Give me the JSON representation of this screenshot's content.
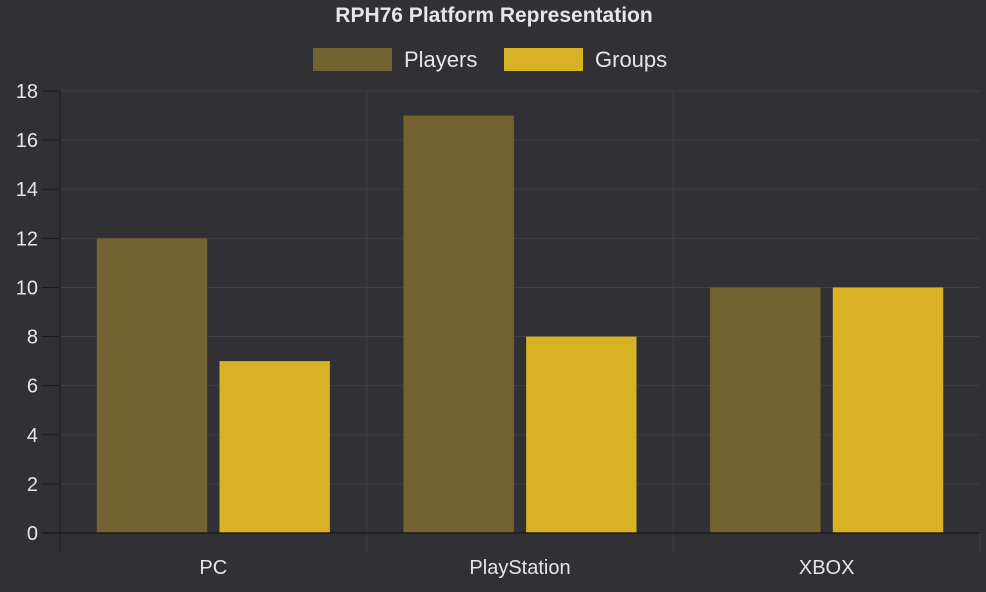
{
  "chart_data": {
    "type": "bar",
    "title": "RPH76 Platform Representation",
    "categories": [
      "PC",
      "PlayStation",
      "XBOX"
    ],
    "series": [
      {
        "name": "Players",
        "values": [
          12,
          17,
          10
        ],
        "color": "#736330"
      },
      {
        "name": "Groups",
        "values": [
          7,
          8,
          10
        ],
        "color": "#d8b224"
      }
    ],
    "ylim": [
      0,
      18
    ],
    "yticks": [
      "0",
      "2",
      "4",
      "6",
      "8",
      "10",
      "12",
      "14",
      "16",
      "18"
    ],
    "legend_position": "top-center",
    "grid": true,
    "colors": {
      "background": "#303035",
      "grid": "#3e3e44",
      "axis": "#1c1c20",
      "text": "#e6e6e6"
    }
  }
}
